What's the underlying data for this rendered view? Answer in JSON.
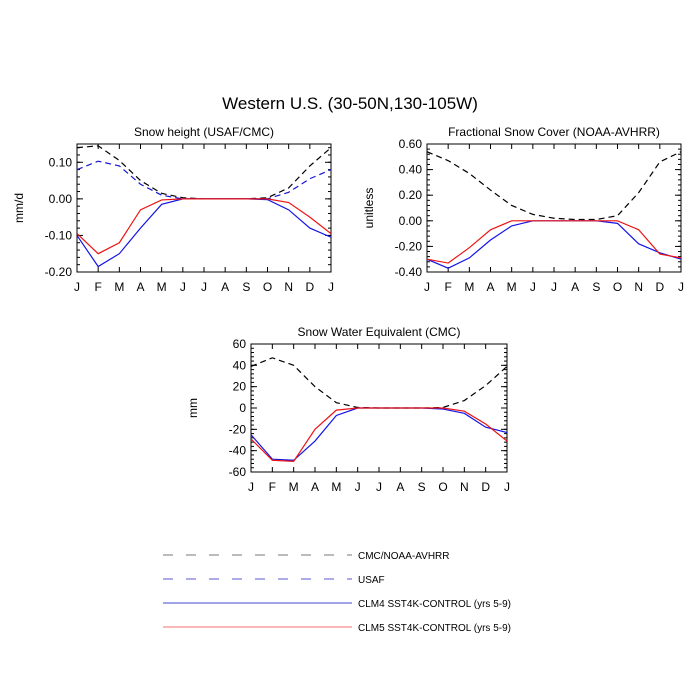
{
  "figure": {
    "title": "Western U.S. (30-50N,130-105W)"
  },
  "colors": {
    "obs": "#000000",
    "usaf": "#1414d6",
    "clm4": "#1414e6",
    "clm5": "#ee1414",
    "legend_obs": "#777777",
    "legend_usaf": "#5a5ad2",
    "legend_clm4": "#4646d2",
    "legend_clm5": "#f07070"
  },
  "legend": [
    {
      "label": "CMC/NOAA-AVHRR",
      "color_key": "legend_obs",
      "dashed": true
    },
    {
      "label": "USAF",
      "color_key": "legend_usaf",
      "dashed": true
    },
    {
      "label": "CLM4 SST4K-CONTROL (yrs 5-9)",
      "color_key": "legend_clm4",
      "dashed": false
    },
    {
      "label": "CLM5 SST4K-CONTROL (yrs 5-9)",
      "color_key": "legend_clm5",
      "dashed": false
    }
  ],
  "chart_data": [
    {
      "type": "line",
      "title": "Snow height (USAF/CMC)",
      "xlabel": "",
      "ylabel": "mm/d",
      "categories": [
        "J",
        "F",
        "M",
        "A",
        "M",
        "J",
        "J",
        "A",
        "S",
        "O",
        "N",
        "D",
        "J"
      ],
      "ylim": [
        -0.2,
        0.15
      ],
      "yticks": [
        -0.2,
        -0.1,
        0.0,
        0.1
      ],
      "ytick_labels": [
        "-0.20",
        "-0.10",
        "0.00",
        "0.10"
      ],
      "series": [
        {
          "name": "CMC/NOAA-AVHRR",
          "color_key": "obs",
          "dashed": true,
          "values": [
            0.14,
            0.145,
            0.105,
            0.05,
            0.015,
            0.003,
            0.0,
            0.0,
            0.0,
            0.003,
            0.03,
            0.09,
            0.14
          ]
        },
        {
          "name": "USAF",
          "color_key": "usaf",
          "dashed": true,
          "values": [
            0.08,
            0.103,
            0.09,
            0.04,
            0.01,
            0.0,
            0.0,
            0.0,
            0.0,
            0.0,
            0.018,
            0.055,
            0.08
          ]
        },
        {
          "name": "CLM4 SST4K-CONTROL (yrs 5-9)",
          "color_key": "clm4",
          "dashed": false,
          "values": [
            -0.1,
            -0.185,
            -0.15,
            -0.08,
            -0.015,
            0.0,
            0.0,
            0.0,
            0.0,
            -0.002,
            -0.03,
            -0.08,
            -0.105
          ]
        },
        {
          "name": "CLM5 SST4K-CONTROL (yrs 5-9)",
          "color_key": "clm5",
          "dashed": false,
          "values": [
            -0.095,
            -0.15,
            -0.12,
            -0.03,
            -0.003,
            0.0,
            0.0,
            0.0,
            0.0,
            0.0,
            -0.01,
            -0.05,
            -0.095
          ]
        }
      ]
    },
    {
      "type": "line",
      "title": "Fractional Snow Cover (NOAA-AVHRR)",
      "xlabel": "",
      "ylabel": "unitless",
      "categories": [
        "J",
        "F",
        "M",
        "A",
        "M",
        "J",
        "J",
        "A",
        "S",
        "O",
        "N",
        "D",
        "J"
      ],
      "ylim": [
        -0.4,
        0.6
      ],
      "yticks": [
        -0.4,
        -0.2,
        0.0,
        0.2,
        0.4,
        0.6
      ],
      "ytick_labels": [
        "-0.40",
        "-0.20",
        "0.00",
        "0.20",
        "0.40",
        "0.60"
      ],
      "series": [
        {
          "name": "CMC/NOAA-AVHRR",
          "color_key": "obs",
          "dashed": true,
          "values": [
            0.54,
            0.47,
            0.37,
            0.24,
            0.12,
            0.05,
            0.02,
            0.01,
            0.01,
            0.04,
            0.22,
            0.46,
            0.54
          ]
        },
        {
          "name": "CLM4 SST4K-CONTROL (yrs 5-9)",
          "color_key": "clm4",
          "dashed": false,
          "values": [
            -0.3,
            -0.37,
            -0.29,
            -0.15,
            -0.04,
            0.0,
            0.0,
            0.0,
            0.0,
            -0.02,
            -0.18,
            -0.25,
            -0.3
          ]
        },
        {
          "name": "CLM5 SST4K-CONTROL (yrs 5-9)",
          "color_key": "clm5",
          "dashed": false,
          "values": [
            -0.3,
            -0.33,
            -0.21,
            -0.07,
            0.0,
            0.0,
            0.0,
            0.0,
            0.0,
            0.0,
            -0.07,
            -0.26,
            -0.29
          ]
        }
      ]
    },
    {
      "type": "line",
      "title": "Snow Water Equivalent (CMC)",
      "xlabel": "",
      "ylabel": "mm",
      "categories": [
        "J",
        "F",
        "M",
        "A",
        "M",
        "J",
        "J",
        "A",
        "S",
        "O",
        "N",
        "D",
        "J"
      ],
      "ylim": [
        -60,
        60
      ],
      "yticks": [
        -60,
        -40,
        -20,
        0,
        20,
        40,
        60
      ],
      "ytick_labels": [
        "-60",
        "-40",
        "-20",
        "0",
        "20",
        "40",
        "60"
      ],
      "series": [
        {
          "name": "CMC/NOAA-AVHRR",
          "color_key": "obs",
          "dashed": true,
          "values": [
            39,
            47,
            40,
            20,
            5,
            0.5,
            0,
            0,
            0,
            0.5,
            7,
            21,
            39
          ]
        },
        {
          "name": "CLM4 SST4K-CONTROL (yrs 5-9)",
          "color_key": "clm4",
          "dashed": false,
          "values": [
            -25,
            -48,
            -49,
            -31,
            -7,
            0,
            0,
            0,
            0,
            -1,
            -5,
            -18,
            -23
          ]
        },
        {
          "name": "CLM5 SST4K-CONTROL (yrs 5-9)",
          "color_key": "clm5",
          "dashed": false,
          "values": [
            -29,
            -49,
            -50,
            -20,
            -2,
            0,
            0,
            0,
            0,
            0,
            -3,
            -15,
            -31
          ]
        }
      ]
    }
  ]
}
